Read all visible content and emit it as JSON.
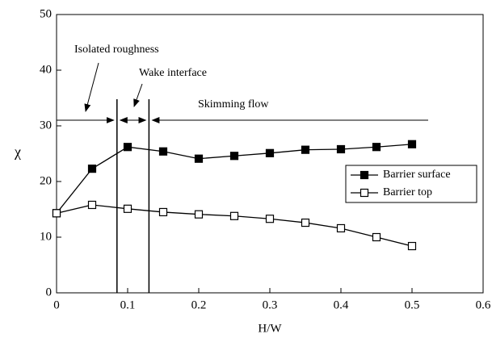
{
  "chart_data": {
    "type": "line",
    "xlabel": "H/W",
    "ylabel": "χ",
    "x": [
      0,
      0.05,
      0.1,
      0.15,
      0.2,
      0.25,
      0.3,
      0.35,
      0.4,
      0.45,
      0.5
    ],
    "series": [
      {
        "name": "Barrier surface",
        "color": "#000000",
        "marker": "filled-square",
        "values": [
          14.3,
          22.3,
          26.2,
          25.4,
          24.1,
          24.6,
          25.1,
          25.7,
          25.8,
          26.2,
          26.7
        ]
      },
      {
        "name": "Barrier top",
        "color": "#000000",
        "marker": "open-square",
        "values": [
          14.3,
          15.8,
          15.1,
          14.5,
          14.1,
          13.8,
          13.3,
          12.6,
          11.6,
          10.0,
          8.4
        ]
      }
    ],
    "xlim": [
      0,
      0.6
    ],
    "xticks": [
      0,
      0.1,
      0.2,
      0.3,
      0.4,
      0.5,
      0.6
    ],
    "ylim": [
      0,
      50
    ],
    "yticks": [
      0,
      10,
      20,
      30,
      40,
      50
    ],
    "grid": false,
    "legend": "right",
    "regime_boundaries": [
      0.085,
      0.13
    ],
    "annotations": [
      "Isolated roughness",
      "Wake interface",
      "Skimming flow"
    ]
  }
}
